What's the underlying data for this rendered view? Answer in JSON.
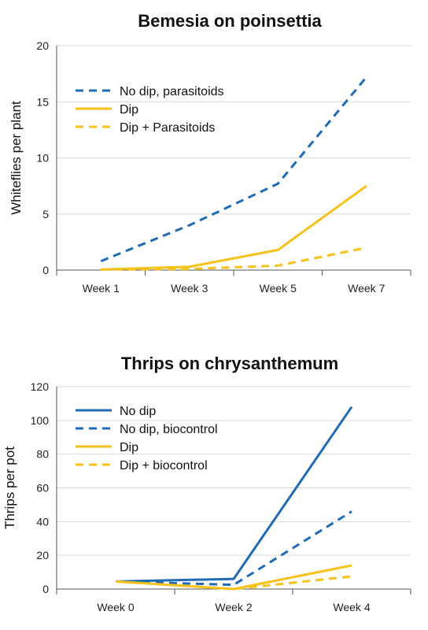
{
  "colors": {
    "blue": "#1f6bb5",
    "yellow": "#f7c21b"
  },
  "chart_data": [
    {
      "type": "line",
      "title": "Bemesia on poinsettia",
      "ylabel": "Whiteflies per plant",
      "xlabel": "",
      "categories": [
        "Week 1",
        "Week 3",
        "Week 5",
        "Week 7"
      ],
      "ylim": [
        0,
        20
      ],
      "yticks": [
        0,
        5,
        10,
        15,
        20
      ],
      "grid": true,
      "legend_position": "top-left",
      "series": [
        {
          "name": "No dip, parasitoids",
          "values": [
            0.8,
            4.0,
            7.7,
            17.2
          ],
          "color": "#1f6bb5",
          "style": "dashed"
        },
        {
          "name": "Dip",
          "values": [
            0.05,
            0.3,
            1.8,
            7.5
          ],
          "color": "#f7c21b",
          "style": "solid"
        },
        {
          "name": "Dip + Parasitoids",
          "values": [
            0.05,
            0.1,
            0.4,
            2.0
          ],
          "color": "#f7c21b",
          "style": "dashed"
        }
      ]
    },
    {
      "type": "line",
      "title": "Thrips on chrysanthemum",
      "ylabel": "Thrips per pot",
      "xlabel": "",
      "categories": [
        "Week 0",
        "Week 2",
        "Week 4"
      ],
      "ylim": [
        0,
        120
      ],
      "yticks": [
        0,
        20,
        40,
        60,
        80,
        100,
        120
      ],
      "grid": true,
      "legend_position": "top-left",
      "series": [
        {
          "name": "No dip",
          "values": [
            4.5,
            6.0,
            108
          ],
          "color": "#1f6bb5",
          "style": "solid"
        },
        {
          "name": "No dip, biocontrol",
          "values": [
            4.5,
            2.5,
            46
          ],
          "color": "#1f6bb5",
          "style": "dashed"
        },
        {
          "name": "Dip",
          "values": [
            4.5,
            0.0,
            14
          ],
          "color": "#f7c21b",
          "style": "solid"
        },
        {
          "name": "Dip + biocontrol",
          "values": [
            4.5,
            0.0,
            7.5
          ],
          "color": "#f7c21b",
          "style": "dashed"
        }
      ]
    }
  ]
}
